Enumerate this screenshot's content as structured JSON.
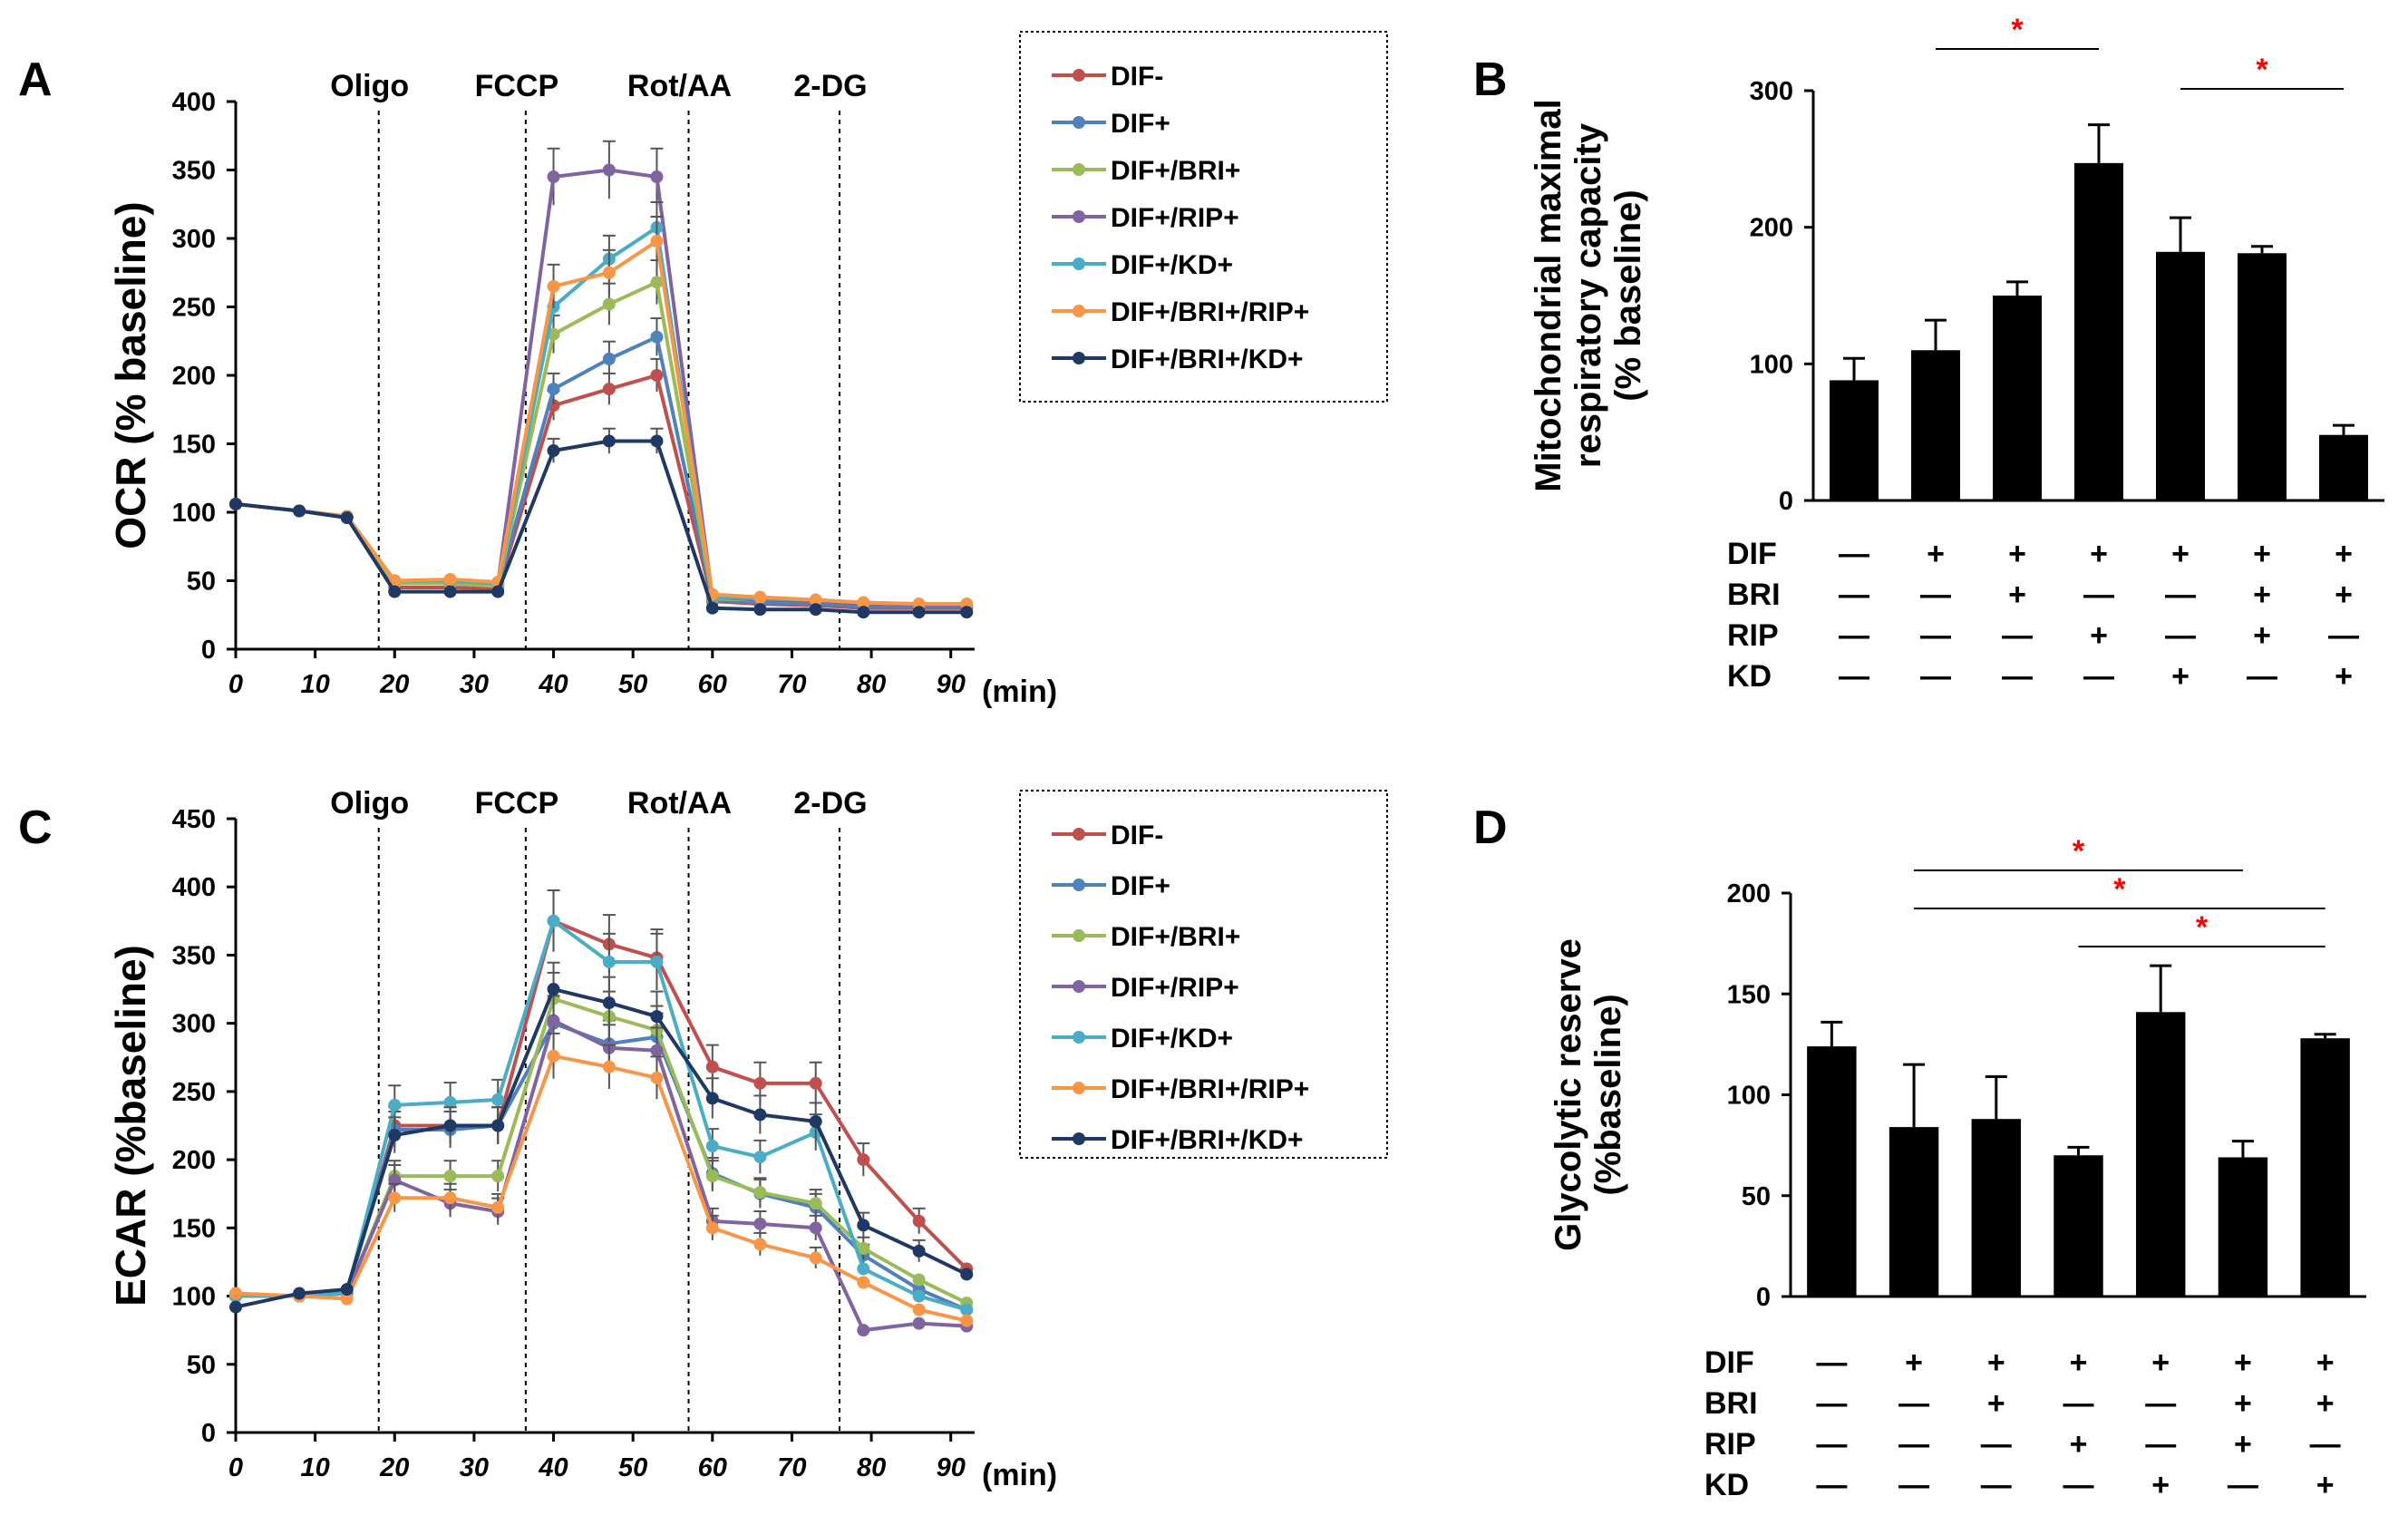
{
  "colors": {
    "DIF-": "#c0504d",
    "DIF+": "#4f81bd",
    "DIF+/BRI+": "#9bbb59",
    "DIF+/RIP+": "#8064a2",
    "DIF+/KD+": "#4bacc6",
    "DIF+/BRI+/RIP+": "#f79646",
    "DIF+/BRI+/KD+": "#1f3864",
    "bar": "#000000",
    "significance": "#ff0000"
  },
  "chart_data": [
    {
      "panel": "A",
      "type": "line",
      "ylabel": "OCR (% baseline)",
      "xunit": "(min)",
      "ylim": [
        0,
        400
      ],
      "yticks": [
        0,
        50,
        100,
        150,
        200,
        250,
        300,
        350,
        400
      ],
      "xlim": [
        0,
        93
      ],
      "xticks": [
        0,
        10,
        20,
        30,
        40,
        50,
        60,
        70,
        80,
        90
      ],
      "injections": [
        {
          "label": "Oligo",
          "x": 18
        },
        {
          "label": "FCCP",
          "x": 36.5
        },
        {
          "label": "Rot/AA",
          "x": 57
        },
        {
          "label": "2-DG",
          "x": 76
        }
      ],
      "x": [
        0,
        8,
        14,
        20,
        27,
        33,
        40,
        47,
        53,
        60,
        66,
        73,
        79,
        86,
        92
      ],
      "series": [
        {
          "name": "DIF-",
          "values": [
            106,
            101,
            97,
            45,
            45,
            44,
            178,
            190,
            200,
            35,
            33,
            32,
            30,
            30,
            30
          ]
        },
        {
          "name": "DIF+",
          "values": [
            106,
            101,
            97,
            48,
            48,
            46,
            190,
            212,
            228,
            36,
            34,
            33,
            31,
            31,
            31
          ]
        },
        {
          "name": "DIF+/BRI+",
          "values": [
            106,
            101,
            97,
            48,
            48,
            46,
            230,
            252,
            268,
            37,
            36,
            35,
            33,
            32,
            32
          ]
        },
        {
          "name": "DIF+/RIP+",
          "values": [
            106,
            101,
            97,
            50,
            50,
            48,
            345,
            350,
            345,
            38,
            36,
            35,
            33,
            32,
            32
          ]
        },
        {
          "name": "DIF+/KD+",
          "values": [
            106,
            101,
            97,
            50,
            50,
            48,
            250,
            285,
            308,
            38,
            37,
            36,
            34,
            33,
            33
          ]
        },
        {
          "name": "DIF+/BRI+/RIP+",
          "values": [
            106,
            101,
            97,
            50,
            51,
            49,
            265,
            275,
            298,
            40,
            38,
            36,
            34,
            33,
            33
          ]
        },
        {
          "name": "DIF+/BRI+/KD+",
          "values": [
            106,
            101,
            96,
            42,
            42,
            42,
            145,
            152,
            152,
            30,
            29,
            29,
            27,
            27,
            27
          ]
        }
      ]
    },
    {
      "panel": "B",
      "type": "bar",
      "ylabel_lines": [
        "Mitochondrial maximal",
        "respiratory capacity",
        "(% baseline)"
      ],
      "ylim": [
        0,
        300
      ],
      "yticks": [
        0,
        100,
        200,
        300
      ],
      "values": [
        88,
        110,
        150,
        247,
        182,
        181,
        48
      ],
      "errors": [
        16,
        22,
        10,
        28,
        25,
        5,
        7
      ],
      "rows": [
        {
          "name": "DIF",
          "signs": [
            "—",
            "+",
            "+",
            "+",
            "+",
            "+",
            "+"
          ]
        },
        {
          "name": "BRI",
          "signs": [
            "—",
            "—",
            "+",
            "—",
            "—",
            "+",
            "+"
          ]
        },
        {
          "name": "RIP",
          "signs": [
            "—",
            "—",
            "—",
            "+",
            "—",
            "+",
            "—"
          ]
        },
        {
          "name": "KD",
          "signs": [
            "—",
            "—",
            "—",
            "—",
            "+",
            "—",
            "+"
          ]
        }
      ],
      "significance": [
        {
          "from": 1,
          "to": 3,
          "label": "*",
          "level": 1
        },
        {
          "from": 4,
          "to": 6,
          "label": "*",
          "level": 0
        }
      ]
    },
    {
      "panel": "C",
      "type": "line",
      "ylabel": "ECAR (%baseline)",
      "xunit": "(min)",
      "ylim": [
        0,
        450
      ],
      "yticks": [
        0,
        50,
        100,
        150,
        200,
        250,
        300,
        350,
        400,
        450
      ],
      "xlim": [
        0,
        93
      ],
      "xticks": [
        0,
        10,
        20,
        30,
        40,
        50,
        60,
        70,
        80,
        90
      ],
      "injections": [
        {
          "label": "Oligo",
          "x": 18
        },
        {
          "label": "FCCP",
          "x": 36.5
        },
        {
          "label": "Rot/AA",
          "x": 57
        },
        {
          "label": "2-DG",
          "x": 76
        }
      ],
      "x": [
        0,
        8,
        14,
        20,
        27,
        33,
        40,
        47,
        53,
        60,
        66,
        73,
        79,
        86,
        92
      ],
      "series": [
        {
          "name": "DIF-",
          "values": [
            100,
            100,
            102,
            225,
            225,
            225,
            375,
            358,
            348,
            268,
            256,
            256,
            200,
            155,
            120
          ]
        },
        {
          "name": "DIF+",
          "values": [
            100,
            100,
            102,
            222,
            222,
            225,
            300,
            285,
            290,
            190,
            175,
            165,
            130,
            105,
            90
          ]
        },
        {
          "name": "DIF+/BRI+",
          "values": [
            100,
            100,
            102,
            188,
            188,
            188,
            318,
            305,
            295,
            188,
            176,
            168,
            135,
            112,
            95
          ]
        },
        {
          "name": "DIF+/RIP+",
          "values": [
            100,
            100,
            102,
            185,
            168,
            162,
            302,
            282,
            280,
            155,
            153,
            150,
            75,
            80,
            78
          ]
        },
        {
          "name": "DIF+/KD+",
          "values": [
            100,
            100,
            102,
            240,
            242,
            244,
            375,
            345,
            345,
            210,
            202,
            220,
            120,
            100,
            90
          ]
        },
        {
          "name": "DIF+/BRI+/RIP+",
          "values": [
            102,
            100,
            98,
            172,
            172,
            165,
            276,
            268,
            260,
            150,
            138,
            128,
            110,
            90,
            82
          ]
        },
        {
          "name": "DIF+/BRI+/KD+",
          "values": [
            92,
            102,
            105,
            218,
            225,
            225,
            325,
            315,
            305,
            245,
            233,
            228,
            152,
            133,
            116
          ]
        }
      ]
    },
    {
      "panel": "D",
      "type": "bar",
      "ylabel_lines": [
        "Glycolytic reserve",
        "(%baseline)"
      ],
      "ylim": [
        0,
        200
      ],
      "yticks": [
        0,
        50,
        100,
        150,
        200
      ],
      "values": [
        124,
        84,
        88,
        70,
        141,
        69,
        128
      ],
      "errors": [
        12,
        31,
        21,
        4,
        23,
        8,
        2
      ],
      "rows": [
        {
          "name": "DIF",
          "signs": [
            "—",
            "+",
            "+",
            "+",
            "+",
            "+",
            "+"
          ]
        },
        {
          "name": "BRI",
          "signs": [
            "—",
            "—",
            "+",
            "—",
            "—",
            "+",
            "+"
          ]
        },
        {
          "name": "RIP",
          "signs": [
            "—",
            "—",
            "—",
            "+",
            "—",
            "+",
            "—"
          ]
        },
        {
          "name": "KD",
          "signs": [
            "—",
            "—",
            "—",
            "—",
            "+",
            "—",
            "+"
          ]
        }
      ],
      "significance": [
        {
          "from": 1,
          "to": 5,
          "label": "*",
          "level": 0
        },
        {
          "from": 1,
          "to": 6,
          "label": "*",
          "level": 1
        },
        {
          "from": 3,
          "to": 6,
          "label": "*",
          "level": 2
        }
      ]
    }
  ]
}
